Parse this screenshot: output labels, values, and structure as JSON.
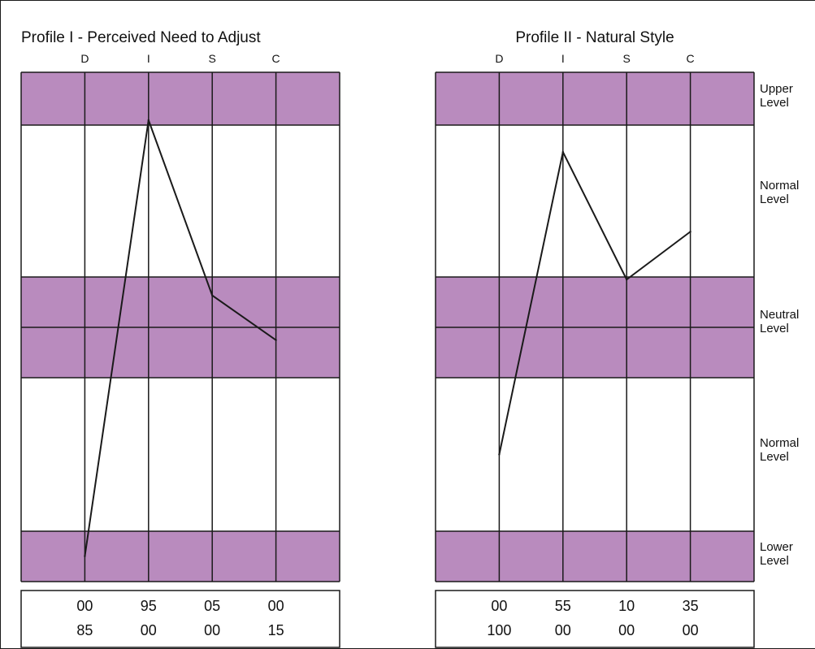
{
  "chart_data": [
    {
      "type": "line",
      "title": "Profile I - Perceived Need to Adjust",
      "categories": [
        "D",
        "I",
        "S",
        "C"
      ],
      "values": [
        -9,
        6.5,
        1,
        -0.5
      ],
      "ylim": [
        -10,
        8
      ],
      "scores": [
        [
          "00",
          "95",
          "05",
          "00"
        ],
        [
          "85",
          "00",
          "00",
          "15"
        ]
      ]
    },
    {
      "type": "line",
      "title": "Profile II - Natural Style",
      "categories": [
        "D",
        "I",
        "S",
        "C"
      ],
      "values": [
        -5,
        5.5,
        1.5,
        3
      ],
      "ylim": [
        -10,
        8
      ],
      "scores": [
        [
          "00",
          "55",
          "10",
          "35"
        ],
        [
          "100",
          "00",
          "00",
          "00"
        ]
      ]
    }
  ],
  "levels": [
    {
      "lines": [
        "Upper",
        "Level"
      ]
    },
    {
      "lines": [
        "Normal",
        "Level"
      ]
    },
    {
      "lines": [
        "Neutral",
        "Level"
      ]
    },
    {
      "lines": [
        "Normal",
        "Level"
      ]
    },
    {
      "lines": [
        "Lower",
        "Level"
      ]
    }
  ],
  "colors": {
    "band": "#b98bbe",
    "line": "#1a1a1a",
    "background": "#ffffff"
  }
}
